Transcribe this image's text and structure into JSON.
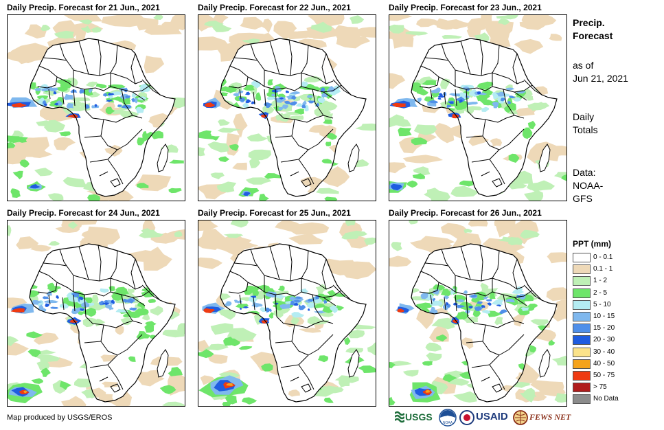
{
  "panels": [
    {
      "title": "Daily Precip. Forecast for 21 Jun., 2021",
      "variant": 0
    },
    {
      "title": "Daily Precip. Forecast for 22 Jun., 2021",
      "variant": 1
    },
    {
      "title": "Daily Precip. Forecast for 23 Jun., 2021",
      "variant": 2
    },
    {
      "title": "Daily Precip. Forecast for 24 Jun., 2021",
      "variant": 3
    },
    {
      "title": "Daily Precip. Forecast for 25 Jun., 2021",
      "variant": 4
    },
    {
      "title": "Daily Precip. Forecast for 26 Jun., 2021",
      "variant": 5
    }
  ],
  "side": {
    "heading_line1": "Precip.",
    "heading_line2": "Forecast",
    "asof_line1": "as of",
    "asof_line2": "Jun 21, 2021",
    "totals_line1": "Daily",
    "totals_line2": "Totals",
    "data_line1": "Data:",
    "data_line2": "NOAA-",
    "data_line3": "GFS"
  },
  "legend": {
    "title": "PPT (mm)",
    "items": [
      {
        "label": "0 - 0.1",
        "color": "#ffffff"
      },
      {
        "label": "0.1 - 1",
        "color": "#eed9b8"
      },
      {
        "label": "1 - 2",
        "color": "#bff0b6"
      },
      {
        "label": "2 - 5",
        "color": "#6ee56a"
      },
      {
        "label": "5 - 10",
        "color": "#b4ecf2"
      },
      {
        "label": "10 - 15",
        "color": "#7fb8ee"
      },
      {
        "label": "15 - 20",
        "color": "#4f8fe9"
      },
      {
        "label": "20 - 30",
        "color": "#1f5ce0"
      },
      {
        "label": "30 - 40",
        "color": "#fbe38a"
      },
      {
        "label": "40 - 50",
        "color": "#f5a31c"
      },
      {
        "label": "50 - 75",
        "color": "#ee3a12"
      },
      {
        "label": "> 75",
        "color": "#b01c1c"
      },
      {
        "label": "No Data",
        "color": "#8c8c8c"
      }
    ]
  },
  "credit": "Map produced by USGS/EROS",
  "logos": {
    "usgs": "USGS",
    "noaa": "NOAA",
    "usaid": "USAID",
    "fewsnet": "FEWS NET"
  }
}
